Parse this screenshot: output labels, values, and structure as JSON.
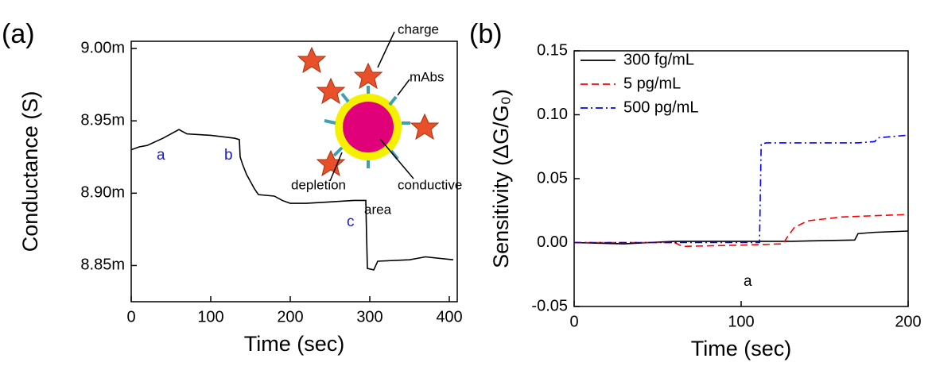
{
  "chart_data": [
    {
      "type": "line",
      "panel_label": "(a)",
      "xlabel": "Time (sec)",
      "ylabel": "Conductance (S)",
      "xlim": [
        0,
        410
      ],
      "xticks": [
        0,
        100,
        200,
        300,
        400
      ],
      "ylim": [
        0.008825,
        0.009005
      ],
      "yticks": [
        {
          "value": 0.00885,
          "label": "8.85m"
        },
        {
          "value": 0.0089,
          "label": "8.90m"
        },
        {
          "value": 0.00895,
          "label": "8.95m"
        },
        {
          "value": 0.009,
          "label": "9.00m"
        }
      ],
      "series": [
        {
          "color": "#000000",
          "style": "solid",
          "x": [
            0,
            10,
            20,
            40,
            60,
            70,
            100,
            130,
            136,
            137,
            140,
            145,
            150,
            155,
            160,
            180,
            190,
            200,
            220,
            250,
            280,
            295,
            296,
            297,
            305,
            310,
            350,
            370,
            405
          ],
          "values": [
            0.00893,
            0.008932,
            0.008933,
            0.008938,
            0.008944,
            0.008941,
            0.00894,
            0.008938,
            0.008937,
            0.008925,
            0.00892,
            0.008913,
            0.008908,
            0.008903,
            0.008899,
            0.008898,
            0.008895,
            0.008893,
            0.008893,
            0.008894,
            0.008895,
            0.008895,
            0.00887,
            0.008848,
            0.008847,
            0.008853,
            0.008854,
            0.008856,
            0.008854
          ]
        }
      ],
      "annotations": [
        "a",
        "b",
        "c"
      ],
      "inset_labels": [
        "charge",
        "mAbs",
        "depletion",
        "conductive",
        "area"
      ]
    },
    {
      "type": "line",
      "panel_label": "(b)",
      "xlabel": "Time (sec)",
      "ylabel": "Sensitivity (ΔG/G₀)",
      "xlim": [
        0,
        200
      ],
      "xticks": [
        0,
        100,
        200
      ],
      "ylim": [
        -0.05,
        0.15
      ],
      "yticks": [
        {
          "value": -0.05,
          "label": "-0.05"
        },
        {
          "value": 0,
          "label": "0.00"
        },
        {
          "value": 0.05,
          "label": "0.05"
        },
        {
          "value": 0.1,
          "label": "0.10"
        },
        {
          "value": 0.15,
          "label": "0.15"
        }
      ],
      "series": [
        {
          "name": "300 fg/mL",
          "color": "#000000",
          "style": "solid",
          "x": [
            0,
            30,
            60,
            100,
            130,
            168,
            170,
            180,
            200
          ],
          "values": [
            0,
            -0.001,
            0.001,
            0.001,
            0.001,
            0.002,
            0.007,
            0.008,
            0.009
          ]
        },
        {
          "name": "5 pg/mL",
          "color": "#ff0000",
          "style": "dashed",
          "x": [
            0,
            60,
            65,
            100,
            125,
            128,
            132,
            140,
            160,
            200
          ],
          "values": [
            0,
            0,
            -0.003,
            -0.002,
            -0.001,
            0.005,
            0.012,
            0.017,
            0.02,
            0.022
          ]
        },
        {
          "name": "500 pg/mL",
          "color": "#0000ff",
          "style": "dashdot",
          "x": [
            0,
            100,
            111,
            112,
            115,
            170,
            180,
            182,
            200
          ],
          "values": [
            0,
            0,
            0,
            0.077,
            0.078,
            0.078,
            0.079,
            0.082,
            0.084
          ]
        }
      ],
      "annotations": [
        "a"
      ]
    }
  ]
}
